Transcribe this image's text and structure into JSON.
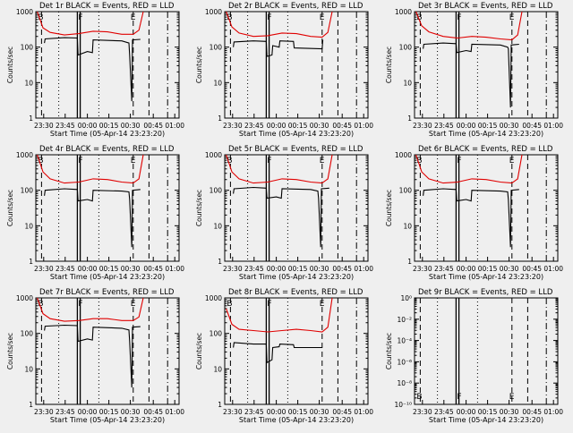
{
  "figure": {
    "xlabel": "Start Time (05-Apr-14 23:23:20)",
    "ylabel": "Counts/sec",
    "x_ticks": [
      "23:30",
      "23:45",
      "00:00",
      "00:15",
      "00:30",
      "00:45",
      "01:00"
    ],
    "colors": {
      "events": "#000000",
      "lld": "#e00000",
      "background": "#efefef"
    },
    "markers": {
      "B": "B",
      "F": "F",
      "E": "E"
    }
  },
  "chart_data": [
    {
      "type": "line",
      "title": "Det 1r BLACK = Events, RED = LLD",
      "xlabel": "Start Time (05-Apr-14 23:23:20)",
      "ylabel": "Counts/sec",
      "log_y": true,
      "y_ticks": [
        "1",
        "10",
        "100",
        "1000"
      ],
      "xlim_min": [
        0,
        100
      ],
      "ylim": [
        1,
        1000
      ],
      "series": [
        {
          "name": "Events",
          "color": "#000000",
          "x": [
            6,
            6.5,
            20,
            29,
            29.5,
            36,
            39.5,
            40,
            60,
            65,
            65.5,
            67,
            67.5,
            73
          ],
          "y": [
            130,
            170,
            185,
            180,
            60,
            75,
            70,
            160,
            150,
            130,
            60,
            3,
            160,
            165
          ]
        },
        {
          "name": "LLD",
          "color": "#e00000",
          "x": [
            1,
            5,
            10,
            20,
            30,
            40,
            50,
            60,
            68,
            72,
            75
          ],
          "y": [
            1000,
            350,
            260,
            220,
            240,
            280,
            270,
            230,
            230,
            300,
            1000
          ]
        }
      ],
      "vlines": {
        "solid": [
          29,
          31
        ],
        "dashed": [
          4,
          68,
          79
        ],
        "dotted": [
          16,
          44
        ],
        "dashdot": [
          92
        ]
      }
    },
    {
      "type": "line",
      "title": "Det 2r BLACK = Events, RED = LLD",
      "xlabel": "Start Time (05-Apr-14 23:23:20)",
      "ylabel": "Counts/sec",
      "log_y": true,
      "y_ticks": [
        "1",
        "10",
        "100",
        "1000"
      ],
      "xlim_min": [
        0,
        100
      ],
      "ylim": [
        1,
        1000
      ],
      "series": [
        {
          "name": "Events",
          "color": "#000000",
          "x": [
            6,
            6.5,
            20,
            29,
            29.5,
            33,
            33.5,
            38,
            38.5,
            48,
            48.5,
            68,
            68.5
          ],
          "y": [
            100,
            140,
            150,
            145,
            55,
            60,
            110,
            100,
            150,
            145,
            95,
            90,
            160
          ]
        },
        {
          "name": "LLD",
          "color": "#e00000",
          "x": [
            1,
            5,
            10,
            20,
            30,
            40,
            50,
            60,
            68,
            72,
            75
          ],
          "y": [
            1000,
            370,
            250,
            200,
            210,
            250,
            240,
            200,
            190,
            260,
            1000
          ]
        }
      ],
      "vlines": {
        "solid": [
          29,
          31
        ],
        "dashed": [
          4,
          68,
          79
        ],
        "dotted": [
          16,
          44
        ],
        "dashdot": [
          92
        ]
      }
    },
    {
      "type": "line",
      "title": "Det 3r BLACK = Events, RED = LLD",
      "xlabel": "Start Time (05-Apr-14 23:23:20)",
      "ylabel": "Counts/sec",
      "log_y": true,
      "y_ticks": [
        "1",
        "10",
        "100",
        "1000"
      ],
      "xlim_min": [
        0,
        100
      ],
      "ylim": [
        1,
        1000
      ],
      "series": [
        {
          "name": "Events",
          "color": "#000000",
          "x": [
            6,
            6.5,
            20,
            29,
            29.5,
            36,
            39.5,
            40,
            60,
            65,
            65.5,
            67,
            67.5,
            73
          ],
          "y": [
            90,
            120,
            130,
            125,
            70,
            80,
            75,
            120,
            115,
            100,
            90,
            2,
            115,
            120
          ]
        },
        {
          "name": "LLD",
          "color": "#e00000",
          "x": [
            1,
            5,
            10,
            20,
            30,
            40,
            50,
            60,
            68,
            72,
            75
          ],
          "y": [
            1000,
            400,
            270,
            200,
            180,
            200,
            190,
            170,
            160,
            220,
            1000
          ]
        }
      ],
      "vlines": {
        "solid": [
          29,
          31
        ],
        "dashed": [
          4,
          68,
          79
        ],
        "dotted": [
          16,
          44
        ],
        "dashdot": [
          92
        ]
      }
    },
    {
      "type": "line",
      "title": "Det 4r BLACK = Events, RED = LLD",
      "xlabel": "Start Time (05-Apr-14 23:23:20)",
      "ylabel": "Counts/sec",
      "log_y": true,
      "y_ticks": [
        "1",
        "10",
        "100",
        "1000"
      ],
      "xlim_min": [
        0,
        100
      ],
      "ylim": [
        1,
        1000
      ],
      "series": [
        {
          "name": "Events",
          "color": "#000000",
          "x": [
            6,
            6.5,
            20,
            29,
            29.5,
            36,
            39.5,
            40,
            60,
            65,
            65.5,
            67,
            67.5,
            73
          ],
          "y": [
            70,
            100,
            110,
            105,
            50,
            55,
            50,
            100,
            95,
            90,
            55,
            2.5,
            100,
            105
          ]
        },
        {
          "name": "LLD",
          "color": "#e00000",
          "x": [
            1,
            5,
            10,
            20,
            30,
            40,
            50,
            60,
            68,
            72,
            75
          ],
          "y": [
            1000,
            330,
            210,
            160,
            170,
            210,
            200,
            170,
            160,
            210,
            1000
          ]
        }
      ],
      "vlines": {
        "solid": [
          29,
          31
        ],
        "dashed": [
          4,
          68,
          79
        ],
        "dotted": [
          16,
          44
        ],
        "dashdot": [
          92
        ]
      }
    },
    {
      "type": "line",
      "title": "Det 5r BLACK = Events, RED = LLD",
      "xlabel": "Start Time (05-Apr-14 23:23:20)",
      "ylabel": "Counts/sec",
      "log_y": true,
      "y_ticks": [
        "1",
        "10",
        "100",
        "1000"
      ],
      "xlim_min": [
        0,
        100
      ],
      "ylim": [
        1,
        1000
      ],
      "series": [
        {
          "name": "Events",
          "color": "#000000",
          "x": [
            6,
            6.5,
            20,
            29,
            29.5,
            36,
            39.5,
            40,
            60,
            65,
            65.5,
            67,
            67.5,
            73
          ],
          "y": [
            80,
            110,
            120,
            115,
            60,
            65,
            60,
            110,
            105,
            95,
            60,
            2.5,
            110,
            115
          ]
        },
        {
          "name": "LLD",
          "color": "#e00000",
          "x": [
            1,
            5,
            10,
            20,
            30,
            40,
            50,
            60,
            68,
            72,
            75
          ],
          "y": [
            1000,
            330,
            210,
            160,
            170,
            210,
            200,
            170,
            160,
            210,
            1000
          ]
        }
      ],
      "vlines": {
        "solid": [
          29,
          31
        ],
        "dashed": [
          4,
          68,
          79
        ],
        "dotted": [
          16,
          44
        ],
        "dashdot": [
          92
        ]
      }
    },
    {
      "type": "line",
      "title": "Det 6r BLACK = Events, RED = LLD",
      "xlabel": "Start Time (05-Apr-14 23:23:20)",
      "ylabel": "Counts/sec",
      "log_y": true,
      "y_ticks": [
        "1",
        "10",
        "100",
        "1000"
      ],
      "xlim_min": [
        0,
        100
      ],
      "ylim": [
        1,
        1000
      ],
      "series": [
        {
          "name": "Events",
          "color": "#000000",
          "x": [
            6,
            6.5,
            20,
            29,
            29.5,
            36,
            39.5,
            40,
            60,
            65,
            65.5,
            67,
            67.5,
            73
          ],
          "y": [
            70,
            100,
            110,
            105,
            50,
            55,
            50,
            100,
            95,
            90,
            55,
            2.5,
            100,
            105
          ]
        },
        {
          "name": "LLD",
          "color": "#e00000",
          "x": [
            1,
            5,
            10,
            20,
            30,
            40,
            50,
            60,
            68,
            72,
            75
          ],
          "y": [
            1000,
            330,
            210,
            160,
            170,
            210,
            200,
            170,
            160,
            210,
            1000
          ]
        }
      ],
      "vlines": {
        "solid": [
          29,
          31
        ],
        "dashed": [
          4,
          68,
          79
        ],
        "dotted": [
          16,
          44
        ],
        "dashdot": [
          92
        ]
      }
    },
    {
      "type": "line",
      "title": "Det 7r BLACK = Events, RED = LLD",
      "xlabel": "Start Time (05-Apr-14 23:23:20)",
      "ylabel": "Counts/sec",
      "log_y": true,
      "y_ticks": [
        "1",
        "10",
        "100",
        "1000"
      ],
      "xlim_min": [
        0,
        100
      ],
      "ylim": [
        1,
        1000
      ],
      "series": [
        {
          "name": "Events",
          "color": "#000000",
          "x": [
            6,
            6.5,
            20,
            29,
            29.5,
            36,
            39.5,
            40,
            60,
            65,
            65.5,
            67,
            67.5,
            73
          ],
          "y": [
            120,
            160,
            170,
            165,
            60,
            70,
            65,
            150,
            140,
            125,
            60,
            3,
            150,
            155
          ]
        },
        {
          "name": "LLD",
          "color": "#e00000",
          "x": [
            1,
            5,
            10,
            20,
            30,
            40,
            50,
            60,
            68,
            72,
            75
          ],
          "y": [
            1000,
            360,
            260,
            220,
            230,
            260,
            260,
            230,
            230,
            290,
            1000
          ]
        }
      ],
      "vlines": {
        "solid": [
          29,
          31
        ],
        "dashed": [
          4,
          68,
          79
        ],
        "dotted": [
          16,
          44
        ],
        "dashdot": [
          92
        ]
      }
    },
    {
      "type": "line",
      "title": "Det 8r BLACK = Events, RED = LLD",
      "xlabel": "Start Time (05-Apr-14 23:23:20)",
      "ylabel": "Counts/sec",
      "log_y": true,
      "y_ticks": [
        "1",
        "10",
        "100",
        "1000"
      ],
      "xlim_min": [
        0,
        100
      ],
      "ylim": [
        1,
        1000
      ],
      "series": [
        {
          "name": "Events",
          "color": "#000000",
          "x": [
            6,
            6.5,
            20,
            29,
            29.5,
            33,
            33.5,
            38,
            38.5,
            48,
            48.5,
            68
          ],
          "y": [
            40,
            55,
            50,
            50,
            15,
            18,
            40,
            42,
            50,
            48,
            40,
            40
          ]
        },
        {
          "name": "LLD",
          "color": "#e00000",
          "x": [
            1,
            5,
            10,
            20,
            30,
            40,
            50,
            60,
            68,
            72,
            75
          ],
          "y": [
            500,
            180,
            130,
            120,
            110,
            120,
            130,
            120,
            110,
            150,
            1000
          ]
        }
      ],
      "vlines": {
        "solid": [
          29,
          31
        ],
        "dashed": [
          4,
          68,
          79
        ],
        "dotted": [
          16,
          44
        ],
        "dashdot": [
          92
        ]
      }
    },
    {
      "type": "line",
      "title": "Det 9r BLACK = Events, RED = LLD",
      "xlabel": "Start Time (05-Apr-14 23:23:20)",
      "ylabel": "Counts/sec",
      "log_y": true,
      "y_ticks": [
        "10⁻¹⁰",
        "10⁻⁸",
        "10⁻⁶",
        "10⁻⁴",
        "10⁻²",
        "10⁰"
      ],
      "xlim_min": [
        0,
        100
      ],
      "ylim": [
        1,
        1000
      ],
      "series": [],
      "vlines": {
        "solid": [
          29,
          31
        ],
        "dashed": [
          4,
          68,
          79
        ],
        "dotted": [
          16,
          44
        ],
        "dashdot": [
          92
        ]
      }
    }
  ]
}
